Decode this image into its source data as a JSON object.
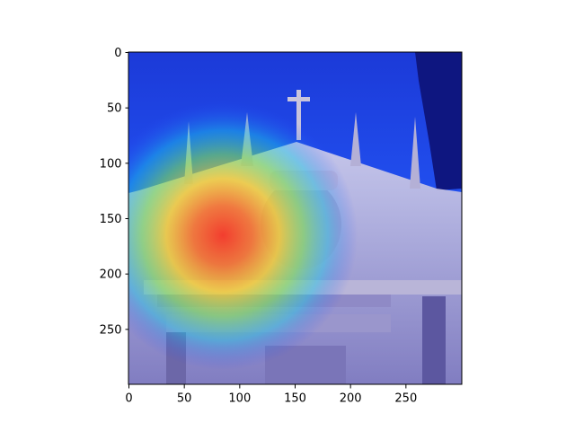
{
  "chart_data": {
    "type": "heatmap",
    "description_note": "",
    "title": "",
    "xlabel": "",
    "ylabel": "",
    "xlim": [
      0,
      300
    ],
    "ylim": [
      300,
      0
    ],
    "x_ticks": [
      0,
      50,
      100,
      150,
      200,
      250
    ],
    "y_ticks": [
      0,
      50,
      100,
      150,
      200,
      250
    ],
    "grid": false,
    "colormap": "jet",
    "heat_peak": {
      "x": 85,
      "y": 165
    },
    "colors": {
      "hot": "#ff2a10",
      "warm": "#ffd21a",
      "mid": "#19c8e6",
      "cool": "#2a48ff",
      "cold": "#0a0a8c",
      "stone": "#c8c4dc",
      "stone_dark": "#6c67a8"
    }
  }
}
